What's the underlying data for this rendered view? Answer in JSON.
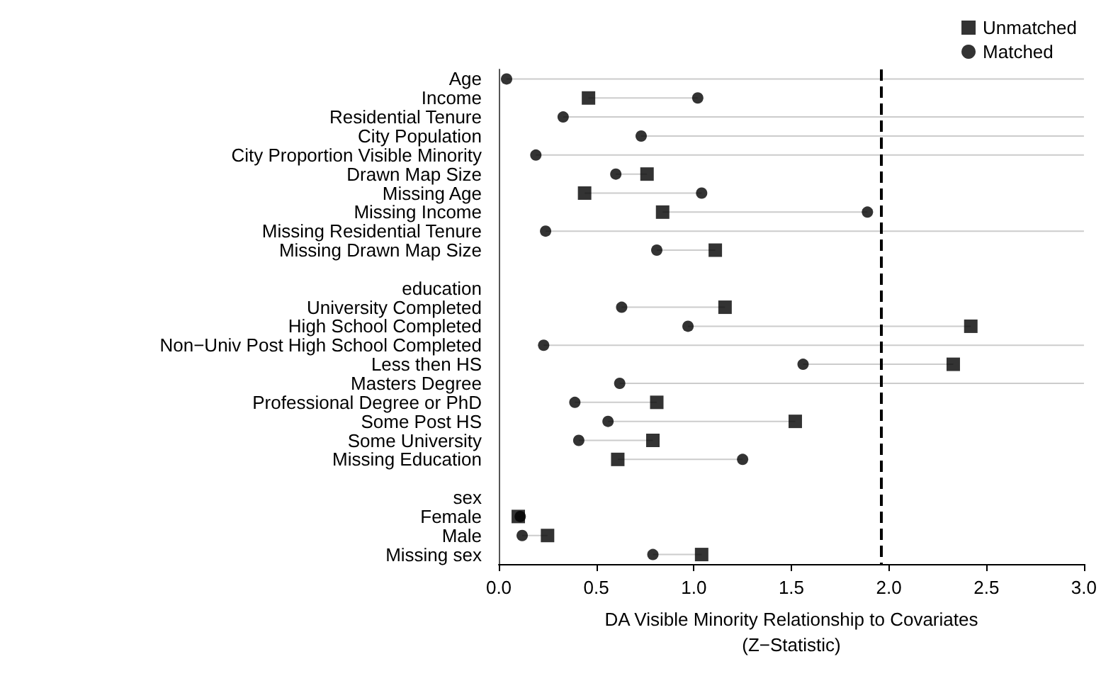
{
  "chart_data": {
    "type": "scatter",
    "orientation": "horizontal",
    "xlabel": "DA Visible Minority Relationship to Covariates\n(Z−Statistic)",
    "categories": [
      "Age",
      "Income",
      "Residential Tenure",
      "City Population",
      "City Proportion Visible Minority",
      "Drawn Map Size",
      "Missing Age",
      "Missing Income",
      "Missing Residential Tenure",
      "Missing Drawn Map Size",
      null,
      "education",
      "University Completed",
      "High School Completed",
      "Non−Univ Post High School Completed",
      "Less then HS",
      "Masters Degree",
      "Professional Degree or PhD",
      "Some Post HS",
      "Some University",
      "Missing Education",
      null,
      "sex",
      "Female",
      "Male",
      "Missing sex"
    ],
    "series": [
      {
        "name": "Unmatched",
        "color": "#000000",
        "marker": "square",
        "values": [
          null,
          0.46,
          null,
          null,
          null,
          0.76,
          0.44,
          0.84,
          null,
          1.11,
          null,
          null,
          1.16,
          2.42,
          null,
          2.33,
          null,
          0.81,
          1.52,
          0.79,
          0.61,
          null,
          null,
          0.1,
          0.25,
          1.04
        ]
      },
      {
        "name": "Matched",
        "color": "#000000",
        "marker": "circle",
        "values": [
          0.04,
          1.02,
          0.33,
          0.73,
          0.19,
          0.6,
          1.04,
          1.89,
          0.24,
          0.81,
          null,
          null,
          0.63,
          0.97,
          0.23,
          1.56,
          0.62,
          0.39,
          0.56,
          0.41,
          1.25,
          null,
          null,
          0.11,
          0.12,
          0.79
        ]
      }
    ],
    "xlim": [
      0,
      3
    ],
    "xticks": [
      {
        "value": 0,
        "label": "0.0"
      },
      {
        "value": 0.5,
        "label": "0.5"
      },
      {
        "value": 1,
        "label": "1.0"
      },
      {
        "value": 1.5,
        "label": "1.5"
      },
      {
        "value": 2,
        "label": "2.0"
      },
      {
        "value": 2.5,
        "label": "2.5"
      },
      {
        "value": 3,
        "label": "3.0"
      }
    ],
    "ref_lines": [
      {
        "axis": "x",
        "value": 1.96,
        "color": "#000000",
        "line_style": "dashed"
      }
    ],
    "grid": false,
    "legend": "top right"
  }
}
